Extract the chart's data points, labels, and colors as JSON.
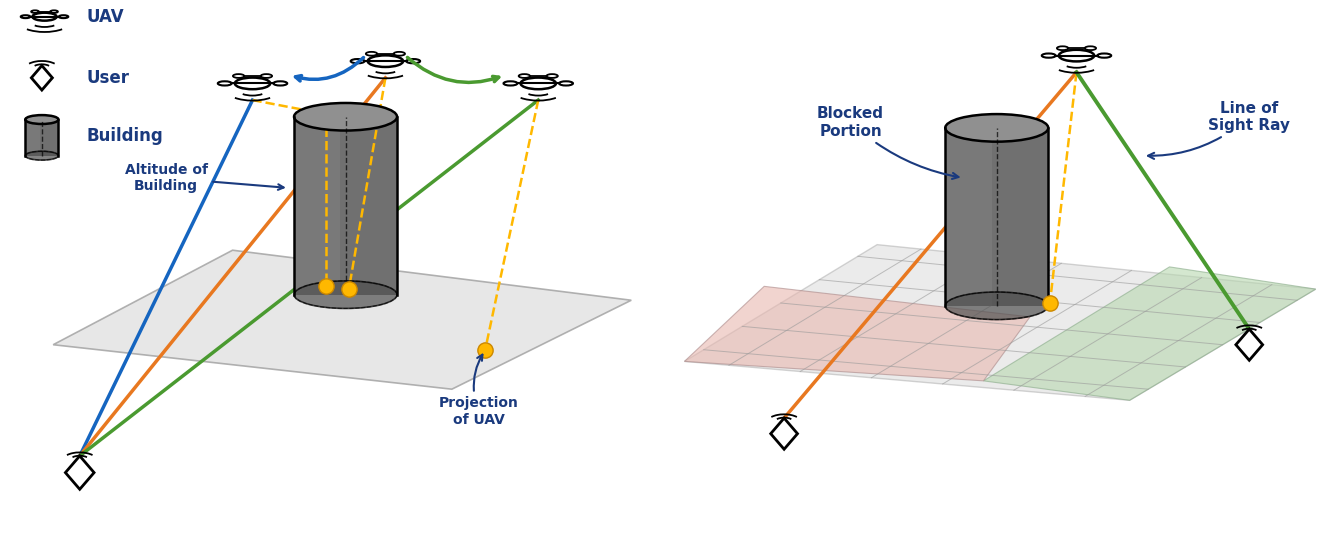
{
  "fig_width": 13.29,
  "fig_height": 5.56,
  "bg_color": "#ffffff",
  "dark_navy": "#1a3a7e",
  "orange_color": "#E87820",
  "green_color": "#4a9a30",
  "blue_color": "#1565C0",
  "gold_color": "#FFB800",
  "cylinder_body": "#707070",
  "cylinder_top": "#909090",
  "cylinder_dark": "#505050",
  "plane_color_left": "#E0E0E0",
  "plane_color_right_green": "#b8d8b0",
  "plane_color_right_red": "#e8b8b0",
  "label_uav": "UAV",
  "label_user": "User",
  "label_building": "Building",
  "label_alt": "Altitude of\nBuilding",
  "label_proj": "Projection\nof UAV",
  "label_blocked": "Blocked\nPortion",
  "label_los": "Line of\nSight Ray"
}
